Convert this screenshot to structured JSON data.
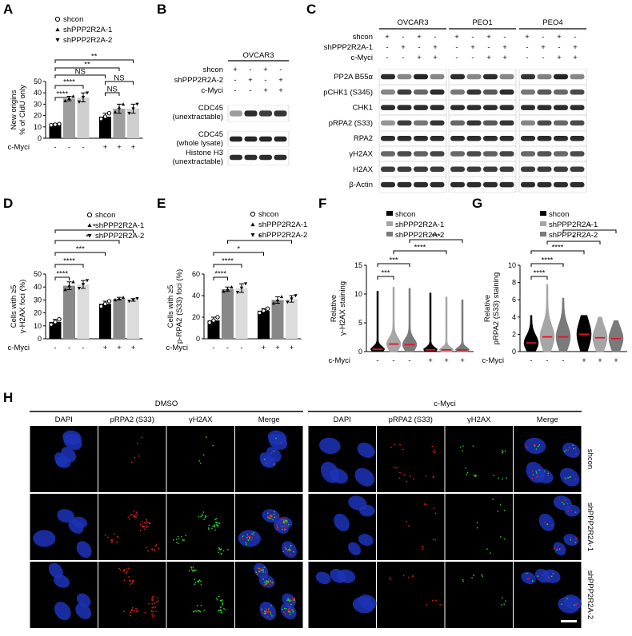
{
  "panels": {
    "A": {
      "letter": "A",
      "legend": [
        "shcon",
        "shPPP2R2A-1",
        "shPPP2R2A-2"
      ],
      "ylabel": "New origins\n% of CldU only",
      "condition_label": "c-Myci",
      "condition_marks": [
        "-",
        "-",
        "-",
        "+",
        "+",
        "+"
      ],
      "sig_labels": [
        "****",
        "****",
        "NS",
        "**",
        "**",
        "NS",
        "NS"
      ]
    },
    "B": {
      "letter": "B",
      "cell_line": "OVCAR3",
      "rows": [
        {
          "label": "shcon",
          "marks": [
            "+",
            "-",
            "+",
            "-"
          ]
        },
        {
          "label": "shPPP2R2A-2",
          "marks": [
            "-",
            "+",
            "-",
            "+"
          ]
        },
        {
          "label": "c-Myci",
          "marks": [
            "-",
            "-",
            "+",
            "+"
          ]
        }
      ],
      "blots": [
        "CDC45\n(unextractable)",
        "CDC45\n(whole lysate)",
        "Histone H3\n(unextractable)"
      ]
    },
    "C": {
      "letter": "C",
      "cell_lines": [
        "OVCAR3",
        "PEO1",
        "PEO4"
      ],
      "rows": [
        {
          "label": "shcon",
          "marks": [
            "+",
            "-",
            "+",
            "-"
          ]
        },
        {
          "label": "shPPP2R2A-1",
          "marks": [
            "-",
            "+",
            "-",
            "+"
          ]
        },
        {
          "label": "c-Myci",
          "marks": [
            "-",
            "-",
            "+",
            "+"
          ]
        }
      ],
      "blots": [
        "PP2A B55α",
        "pCHK1 (S345)",
        "CHK1",
        "pRPA2 (S33)",
        "RPA2",
        "γH2AX",
        "H2AX",
        "β-Actin"
      ]
    },
    "D": {
      "letter": "D",
      "legend": [
        "shcon",
        "shPPP2R2A-1",
        "shPPP2R2A-2"
      ],
      "ylabel": "Cells with ≥5\nγ-H2AX foci (%)",
      "condition_label": "c-Myci",
      "condition_marks": [
        "-",
        "-",
        "-",
        "+",
        "+",
        "+"
      ],
      "sig_labels": [
        "****",
        "****",
        "***",
        "*",
        "*"
      ]
    },
    "E": {
      "letter": "E",
      "legend": [
        "shcon",
        "shPPP2R2A-1",
        "shPPP2R2A-2"
      ],
      "ylabel": "Cells with ≥5\np-RPA2 (S33) foci (%)",
      "condition_label": "c-Myci",
      "condition_marks": [
        "-",
        "-",
        "-",
        "+",
        "+",
        "+"
      ],
      "sig_labels": [
        "****",
        "****",
        "*",
        "*"
      ]
    },
    "F": {
      "letter": "F",
      "legend": [
        "shcon",
        "shPPP2R2A-1",
        "shPPP2R2A-2"
      ],
      "ylabel": "Relative\nγ-H2AX staining",
      "condition_label": "c-Myci",
      "condition_marks": [
        "-",
        "-",
        "-",
        "+",
        "+",
        "+"
      ],
      "sig_labels": [
        "***",
        "***",
        "****",
        "***"
      ]
    },
    "G": {
      "letter": "G",
      "legend": [
        "shcon",
        "shPPP2R2A-1",
        "shPPP2R2A-2"
      ],
      "ylabel": "Relative\npRPA2 (S33) staining",
      "condition_label": "c-Myci",
      "condition_marks": [
        "-",
        "-",
        "-",
        "+",
        "+",
        "+"
      ],
      "sig_labels": [
        "****",
        "****",
        "****",
        "*",
        "*"
      ]
    },
    "H": {
      "letter": "H",
      "groups": [
        "DMSO",
        "c-Myci"
      ],
      "channels": [
        "DAPI",
        "pRPA2 (S33)",
        "γH2AX",
        "Merge"
      ],
      "rows": [
        "shcon",
        "shPPP2R2A-1",
        "shPPP2R2A-2"
      ]
    }
  },
  "chart_data": [
    {
      "panel": "A",
      "type": "bar",
      "categories": [
        "shcon -",
        "shPPP2R2A-1 -",
        "shPPP2R2A-2 -",
        "shcon +",
        "shPPP2R2A-1 +",
        "shPPP2R2A-2 +"
      ],
      "values": [
        12,
        35,
        36,
        19,
        26,
        26
      ],
      "errors": [
        1,
        2,
        4,
        3,
        4,
        4
      ],
      "points": [
        [
          11.5,
          12,
          12.5
        ],
        [
          33,
          35,
          37
        ],
        [
          32,
          36,
          40
        ],
        [
          17,
          19,
          22
        ],
        [
          23,
          27,
          30
        ],
        [
          22,
          26,
          30
        ]
      ],
      "bar_colors": [
        "#000000",
        "#9e9e9e",
        "#cfcfcf",
        "#000000",
        "#9e9e9e",
        "#cfcfcf"
      ],
      "ylim": [
        0,
        50
      ],
      "yticks": [
        0,
        10,
        20,
        30,
        40,
        50
      ]
    },
    {
      "panel": "D",
      "type": "bar",
      "categories": [
        "shcon -",
        "shPPP2R2A-1 -",
        "shPPP2R2A-2 -",
        "shcon +",
        "shPPP2R2A-1 +",
        "shPPP2R2A-2 +"
      ],
      "values": [
        13,
        41,
        42,
        27,
        31,
        30
      ],
      "errors": [
        2,
        3,
        3,
        2,
        1,
        1
      ],
      "points": [
        [
          11,
          13,
          15
        ],
        [
          38,
          41,
          44
        ],
        [
          39,
          42,
          45
        ],
        [
          25,
          27,
          29
        ],
        [
          30,
          31,
          32
        ],
        [
          29,
          30,
          31
        ]
      ],
      "bar_colors": [
        "#000000",
        "#888888",
        "#dcdcdc",
        "#000000",
        "#888888",
        "#dcdcdc"
      ],
      "ylim": [
        0,
        50
      ],
      "yticks": [
        0,
        10,
        20,
        30,
        40,
        50
      ]
    },
    {
      "panel": "E",
      "type": "bar",
      "categories": [
        "shcon -",
        "shPPP2R2A-1 -",
        "shPPP2R2A-2 -",
        "shcon +",
        "shPPP2R2A-1 +",
        "shPPP2R2A-2 +"
      ],
      "values": [
        17,
        46,
        47,
        26,
        36,
        37
      ],
      "errors": [
        3,
        2,
        4,
        2,
        3,
        3
      ],
      "points": [
        [
          15,
          17,
          20
        ],
        [
          44,
          46,
          48
        ],
        [
          43,
          47,
          51
        ],
        [
          24,
          26,
          28
        ],
        [
          33,
          36,
          39
        ],
        [
          34,
          37,
          40
        ]
      ],
      "bar_colors": [
        "#000000",
        "#888888",
        "#dcdcdc",
        "#000000",
        "#888888",
        "#dcdcdc"
      ],
      "ylim": [
        0,
        60
      ],
      "yticks": [
        0,
        20,
        40,
        60
      ]
    },
    {
      "panel": "F",
      "type": "violin",
      "categories": [
        "shcon -",
        "shPPP2R2A-1 -",
        "shPPP2R2A-2 -",
        "shcon +",
        "shPPP2R2A-1 +",
        "shPPP2R2A-2 +"
      ],
      "max": [
        10.5,
        11.2,
        11.0,
        10.2,
        9.5,
        9.0
      ],
      "median": [
        0.4,
        1.3,
        1.2,
        0.3,
        0.3,
        0.3
      ],
      "colors": [
        "#000000",
        "#a6a6a6",
        "#7a7a7a",
        "#000000",
        "#a6a6a6",
        "#7a7a7a"
      ],
      "ylim": [
        0,
        15
      ],
      "yticks": [
        0,
        5,
        10,
        15
      ]
    },
    {
      "panel": "G",
      "type": "violin",
      "categories": [
        "shcon -",
        "shPPP2R2A-1 -",
        "shPPP2R2A-2 -",
        "shcon +",
        "shPPP2R2A-1 +",
        "shPPP2R2A-2 +"
      ],
      "max": [
        4.2,
        7.8,
        6.2,
        4.2,
        4.0,
        3.6
      ],
      "median": [
        1.0,
        1.7,
        1.7,
        2.0,
        1.6,
        1.5
      ],
      "colors": [
        "#000000",
        "#a6a6a6",
        "#7a7a7a",
        "#000000",
        "#a6a6a6",
        "#7a7a7a"
      ],
      "ylim": [
        0,
        10
      ],
      "yticks": [
        0,
        2,
        4,
        6,
        8,
        10
      ]
    }
  ]
}
